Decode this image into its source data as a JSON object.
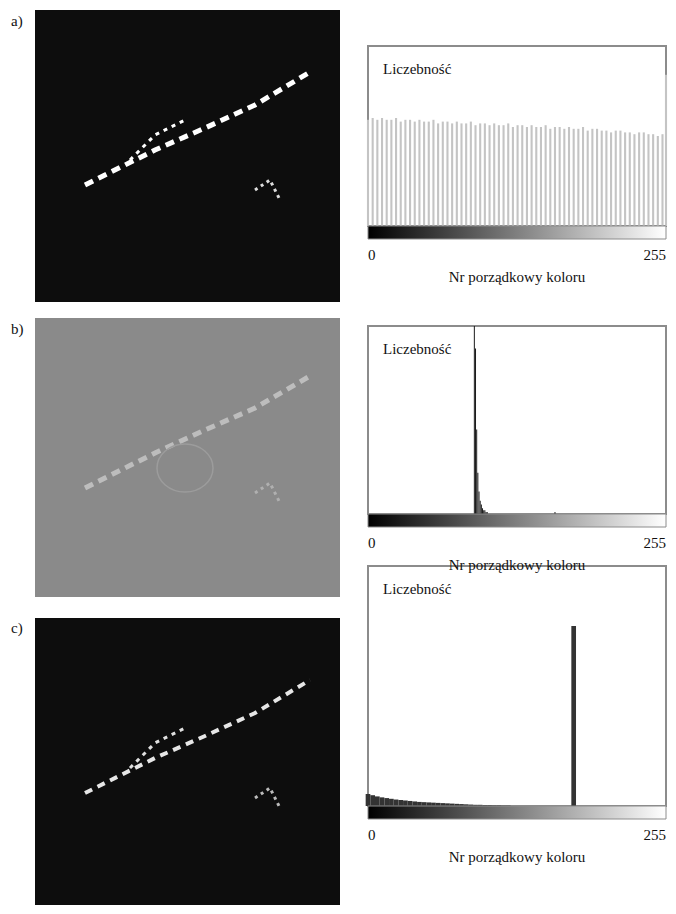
{
  "chart_data": [
    {
      "type": "bar",
      "title": "a)",
      "y_label": "Liczebność",
      "x_label": "Nr porządkowy koloru",
      "x": [
        0,
        4,
        8,
        12,
        16,
        20,
        24,
        28,
        32,
        36,
        40,
        44,
        48,
        52,
        56,
        60,
        64,
        68,
        72,
        76,
        80,
        84,
        88,
        92,
        96,
        100,
        104,
        108,
        112,
        116,
        120,
        124,
        128,
        132,
        136,
        140,
        144,
        148,
        152,
        156,
        160,
        164,
        168,
        172,
        176,
        180,
        184,
        188,
        192,
        196,
        200,
        204,
        208,
        212,
        216,
        220,
        224,
        228,
        232,
        236,
        240,
        244,
        248,
        252,
        255
      ],
      "values": [
        59,
        60,
        59,
        60,
        59,
        59,
        60,
        58,
        59,
        59,
        58,
        59,
        58,
        58,
        59,
        57,
        58,
        58,
        57,
        58,
        57,
        57,
        58,
        56,
        57,
        57,
        56,
        57,
        56,
        56,
        57,
        55,
        56,
        56,
        55,
        56,
        55,
        55,
        56,
        54,
        55,
        55,
        54,
        55,
        54,
        54,
        55,
        53,
        54,
        54,
        53,
        53,
        52,
        53,
        53,
        52,
        52,
        51,
        52,
        52,
        51,
        51,
        50,
        51,
        84
      ],
      "color": "#c4c4c4",
      "xlim": [
        0,
        255
      ],
      "xticks": [
        0,
        255
      ],
      "ylim": [
        0,
        100
      ],
      "tick_labels": "x",
      "grid": false
    },
    {
      "type": "bar",
      "title": "b)",
      "y_label": "Liczebność",
      "x_label": "Nr porządkowy koloru",
      "x": [
        91,
        92,
        93,
        94,
        95,
        96,
        97,
        98,
        99,
        100,
        101,
        102,
        160
      ],
      "values": [
        100,
        88,
        45,
        22,
        12,
        7,
        5,
        3,
        2,
        2,
        1,
        1,
        1
      ],
      "color": "#1a1a1a",
      "xlim": [
        0,
        255
      ],
      "xticks": [
        0,
        255
      ],
      "ylim": [
        0,
        100
      ],
      "tick_labels": "x",
      "grid": false
    },
    {
      "type": "bar",
      "title": "c)",
      "y_label": "Liczebność",
      "x_label": "Nr porządkowy koloru",
      "x": [
        0,
        4,
        8,
        12,
        16,
        20,
        24,
        28,
        32,
        36,
        40,
        44,
        48,
        52,
        56,
        60,
        64,
        68,
        72,
        76,
        80,
        84,
        88,
        92,
        96,
        100,
        104,
        108,
        112,
        116,
        120,
        176
      ],
      "values": [
        5,
        4.5,
        4,
        3.6,
        3.3,
        3,
        2.7,
        2.5,
        2.3,
        2.1,
        1.9,
        1.7,
        1.6,
        1.5,
        1.4,
        1.3,
        1.2,
        1.1,
        1,
        0.9,
        0.8,
        0.7,
        0.6,
        0.5,
        0.5,
        0.4,
        0.4,
        0.3,
        0.3,
        0.2,
        0.2,
        75
      ],
      "color": "#333333",
      "xlim": [
        0,
        255
      ],
      "xticks": [
        0,
        255
      ],
      "ylim": [
        0,
        100
      ],
      "tick_labels": "x",
      "grid": false
    }
  ]
}
